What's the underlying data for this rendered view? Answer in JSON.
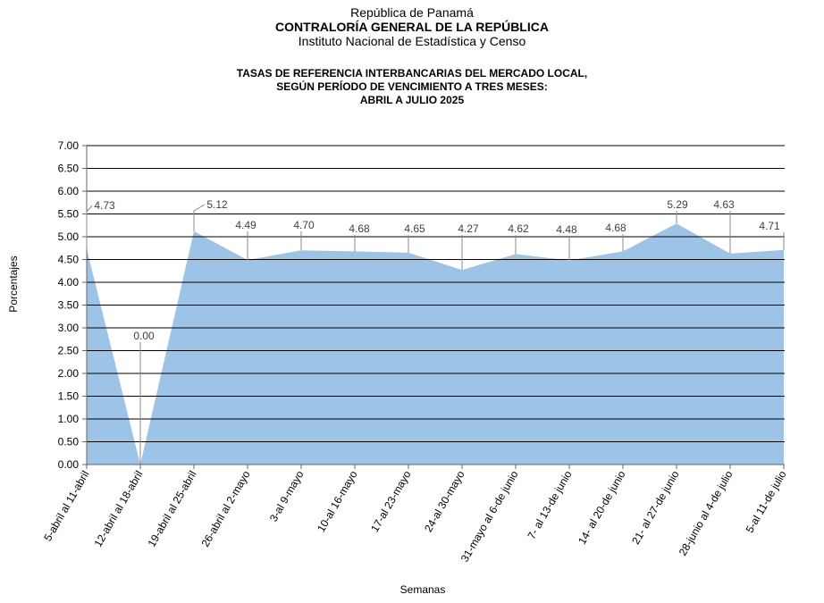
{
  "header": {
    "line1": "República de Panamá",
    "line2": "CONTRALORÍA GENERAL DE LA REPÚBLICA",
    "line3": "Instituto Nacional de Estadística y Censo"
  },
  "chart_data": {
    "type": "area",
    "title": [
      "TASAS DE REFERENCIA INTERBANCARIAS DEL MERCADO LOCAL,",
      "SEGÚN PERÍODO DE VENCIMIENTO A TRES MESES:",
      "ABRIL A JULIO 2025"
    ],
    "xlabel": "Semanas",
    "ylabel": "Porcentajes",
    "ylim": [
      0,
      7
    ],
    "ytick_step": 0.5,
    "grid": true,
    "categories": [
      "5-abril al 11-abril",
      "12-abril al 18-abril",
      "19-abril al 25-abril",
      "26-abril al 2-mayo",
      "3-al 9-mayo",
      "10-al 16-mayo",
      "17-al 23-mayo",
      "24-al 30-mayo",
      "31-mayo al 6-de junio",
      "7- al 13-de junio",
      "14- al 20-de junio",
      "21- al 27-de junio",
      "28-junio al 4-de julio",
      "5-al 11-de julio"
    ],
    "values": [
      4.73,
      0.0,
      5.12,
      4.49,
      4.7,
      4.68,
      4.65,
      4.27,
      4.62,
      4.48,
      4.68,
      5.29,
      4.63,
      4.71
    ],
    "fill_color": "#9DC3E6"
  }
}
